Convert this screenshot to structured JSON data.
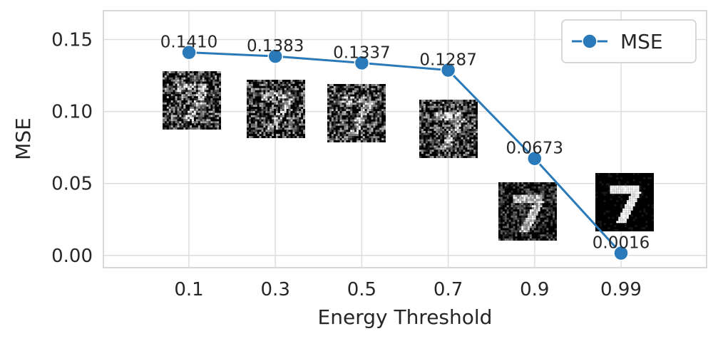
{
  "chart_data": {
    "type": "line",
    "xlabel": "Energy Threshold",
    "ylabel": "MSE",
    "categories": [
      "0.1",
      "0.3",
      "0.5",
      "0.7",
      "0.9",
      "0.99"
    ],
    "series": [
      {
        "name": "MSE",
        "values": [
          0.141,
          0.1383,
          0.1337,
          0.1287,
          0.0673,
          0.0016
        ],
        "color": "#2a7ab9"
      }
    ],
    "data_labels": [
      "0.1410",
      "0.1383",
      "0.1337",
      "0.1287",
      "0.0673",
      "0.0016"
    ],
    "yticks": [
      "0.00",
      "0.05",
      "0.10",
      "0.15"
    ],
    "ylim": [
      -0.0085,
      0.17
    ],
    "grid": true,
    "legend_position": "top-right",
    "thumbnail_images": [
      {
        "category": "0.1",
        "depicts": "noisy reconstruction of digit 7",
        "noise_level": 0.95
      },
      {
        "category": "0.3",
        "depicts": "noisy reconstruction of digit 7",
        "noise_level": 0.93
      },
      {
        "category": "0.5",
        "depicts": "noisy reconstruction of digit 7",
        "noise_level": 0.9
      },
      {
        "category": "0.7",
        "depicts": "noisy reconstruction of digit 7",
        "noise_level": 0.85
      },
      {
        "category": "0.9",
        "depicts": "noisy reconstruction of digit 7",
        "noise_level": 0.55
      },
      {
        "category": "0.99",
        "depicts": "clean reconstruction of digit 7",
        "noise_level": 0.12
      }
    ]
  }
}
